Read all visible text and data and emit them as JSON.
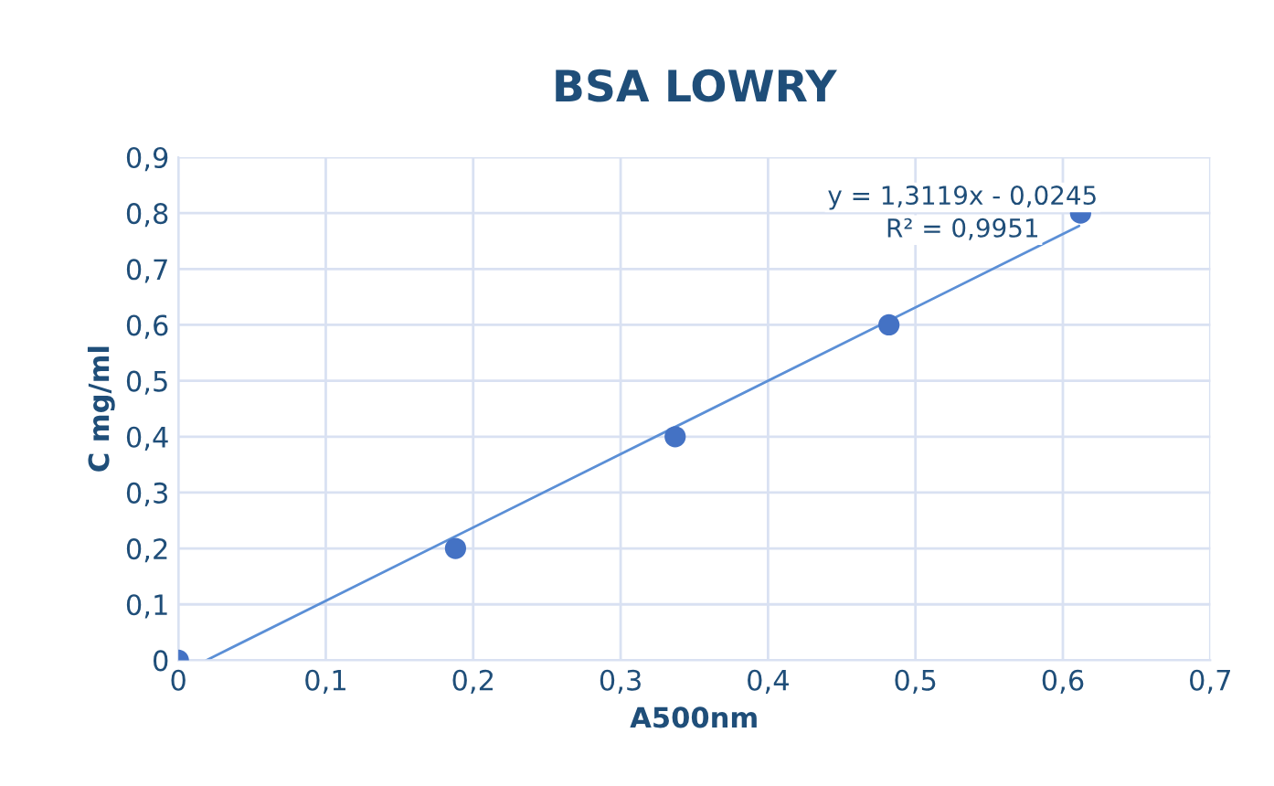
{
  "chart_data": {
    "type": "scatter",
    "title": "BSA LOWRY",
    "xlabel": "A500nm",
    "ylabel": "C mg/ml",
    "series": [
      {
        "color": "#4472c4",
        "x": [
          0,
          0.188,
          0.337,
          0.482,
          0.612
        ],
        "values": [
          0,
          0.2,
          0.4,
          0.6,
          0.8
        ]
      },
      {
        "type": "line",
        "marker": "none",
        "color": "#5b8fd6",
        "x": [
          0.019,
          0.611
        ],
        "values": [
          0,
          0.777
        ]
      }
    ],
    "marker": "circle",
    "grid": true,
    "xlim": [
      0,
      0.7
    ],
    "xticks": [
      {
        "value": 0,
        "label": "0"
      },
      {
        "value": 0.1,
        "label": "0,1"
      },
      {
        "value": 0.2,
        "label": "0,2"
      },
      {
        "value": 0.3,
        "label": "0,3"
      },
      {
        "value": 0.4,
        "label": "0,4"
      },
      {
        "value": 0.5,
        "label": "0,5"
      },
      {
        "value": 0.6,
        "label": "0,6"
      },
      {
        "value": 0.7,
        "label": "0,7"
      }
    ],
    "ylim": [
      0,
      0.9
    ],
    "yticks": [
      {
        "value": 0,
        "label": "0"
      },
      {
        "value": 0.1,
        "label": "0,1"
      },
      {
        "value": 0.2,
        "label": "0,2"
      },
      {
        "value": 0.3,
        "label": "0,3"
      },
      {
        "value": 0.4,
        "label": "0,4"
      },
      {
        "value": 0.5,
        "label": "0,5"
      },
      {
        "value": 0.6,
        "label": "0,6"
      },
      {
        "value": 0.7,
        "label": "0,7"
      },
      {
        "value": 0.8,
        "label": "0,8"
      },
      {
        "value": 0.9,
        "label": "0,9"
      }
    ],
    "annotations": [
      "y = 1,3119x - 0,0245",
      "R² = 0,9951"
    ]
  }
}
